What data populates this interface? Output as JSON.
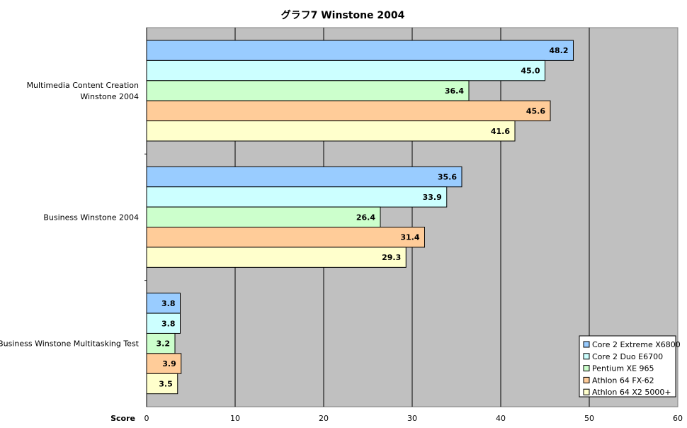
{
  "chart_data": {
    "type": "bar",
    "orientation": "horizontal",
    "title": "グラフ7  Winstone 2004",
    "xlabel": "Score",
    "ylabel": "",
    "xlim": [
      0,
      60
    ],
    "x_ticks": [
      "0",
      "10",
      "20",
      "30",
      "40",
      "50",
      "60"
    ],
    "grid": true,
    "legend_position": "bottom-right",
    "categories": [
      [
        "Multimedia Content Creation",
        "Winstone 2004"
      ],
      [
        "Business Winstone 2004"
      ],
      [
        "Business Winstone Multitasking Test"
      ]
    ],
    "series": [
      {
        "name": "Core 2 Extreme X6800",
        "color": "#99ccff",
        "values": [
          48.2,
          35.6,
          3.8
        ],
        "labels": [
          "48.2",
          "35.6",
          "3.8"
        ]
      },
      {
        "name": "Core 2 Duo E6700",
        "color": "#ccffff",
        "values": [
          45.0,
          33.9,
          3.8
        ],
        "labels": [
          "45.0",
          "33.9",
          "3.8"
        ]
      },
      {
        "name": "Pentium XE 965",
        "color": "#ccffcc",
        "values": [
          36.4,
          26.4,
          3.2
        ],
        "labels": [
          "36.4",
          "26.4",
          "3.2"
        ]
      },
      {
        "name": "Athlon 64 FX-62",
        "color": "#ffcc99",
        "values": [
          45.6,
          31.4,
          3.9
        ],
        "labels": [
          "45.6",
          "31.4",
          "3.9"
        ]
      },
      {
        "name": "Athlon 64 X2 5000+",
        "color": "#ffffcc",
        "values": [
          41.6,
          29.3,
          3.5
        ],
        "labels": [
          "41.6",
          "29.3",
          "3.5"
        ]
      }
    ],
    "plot_background": "#c0c0c0"
  }
}
